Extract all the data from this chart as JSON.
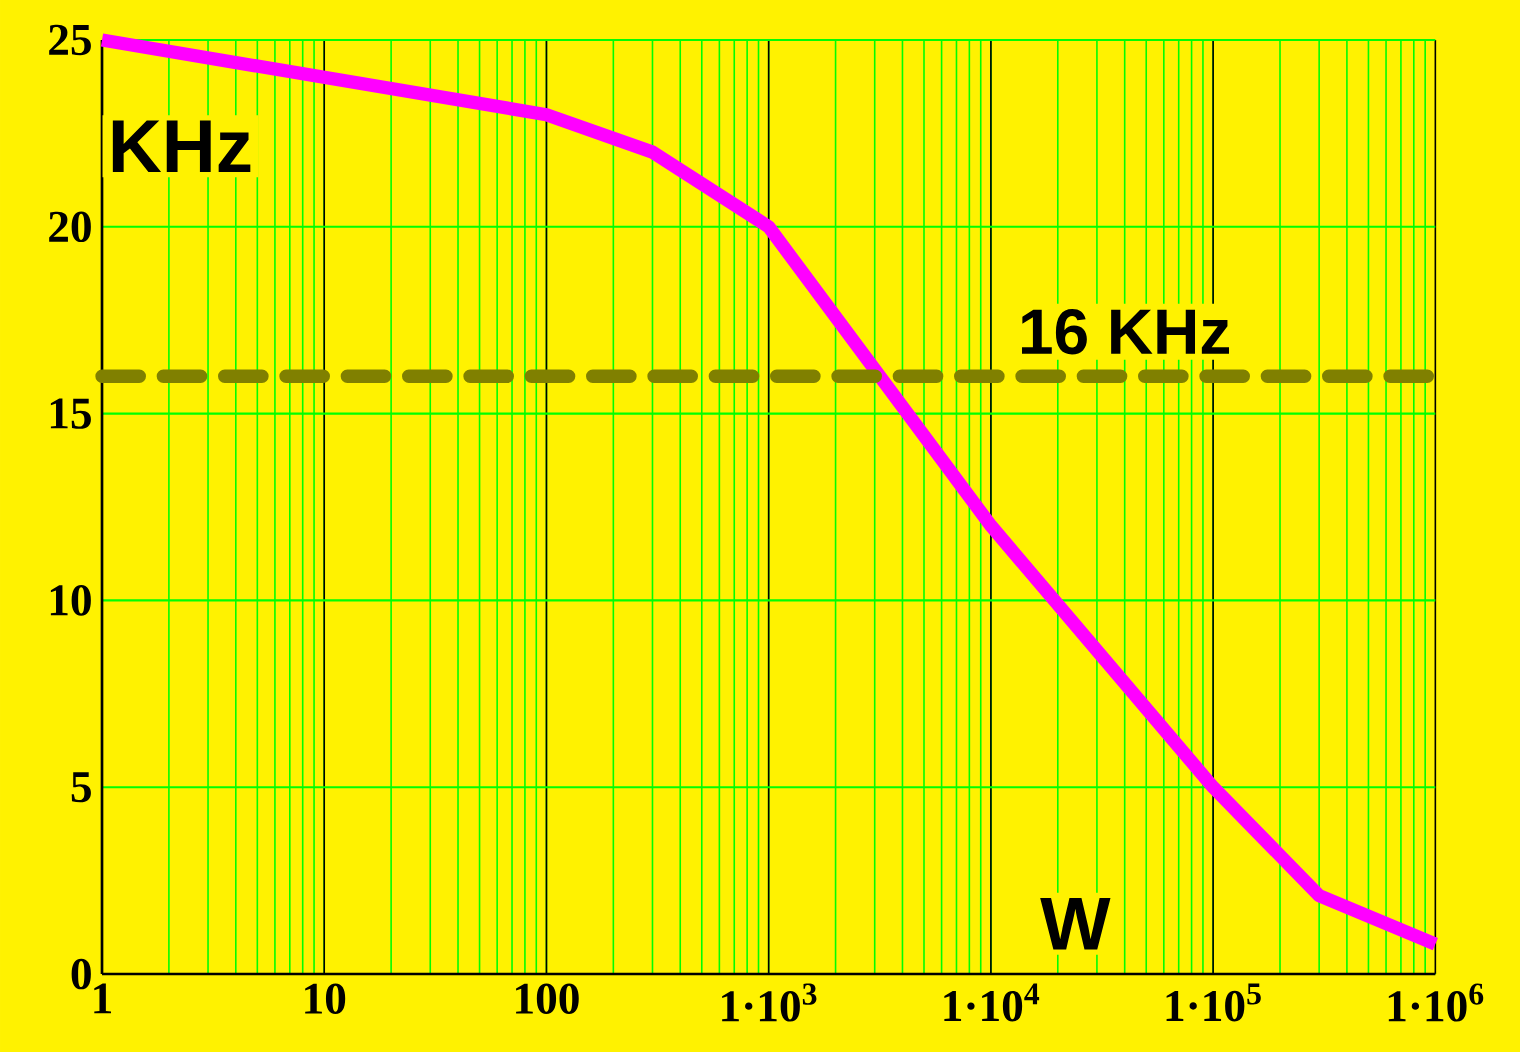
{
  "chart_data": {
    "type": "line",
    "xlabel": "W",
    "ylabel": "KHz",
    "log": "x",
    "grid": true,
    "marker": "none",
    "line_style": "solid",
    "x": [
      1,
      10,
      100,
      300,
      1000,
      10000,
      100000,
      300000,
      1000000
    ],
    "series": [
      {
        "color": "#ff00ff",
        "values": [
          25,
          24,
          23,
          22,
          20,
          12,
          5,
          2.1,
          0.8
        ]
      }
    ],
    "xlim": [
      1,
      1000000
    ],
    "ylim": [
      0,
      25
    ],
    "xticks": [
      1,
      10,
      100,
      {
        "value": 1000,
        "label": "1·10$^{3}$"
      },
      {
        "value": 10000,
        "label": "1·10$^{4}$"
      },
      {
        "value": 100000,
        "label": "1·10$^{5}$"
      },
      {
        "value": 1000000,
        "label": "1·10$^{6}$"
      }
    ],
    "yticks": [
      0,
      5,
      10,
      15,
      20,
      25
    ],
    "ref_lines": [
      {
        "axis": "y",
        "value": 16,
        "label": "16 KHz",
        "color": "#808000",
        "line_style": "dashed"
      }
    ]
  }
}
